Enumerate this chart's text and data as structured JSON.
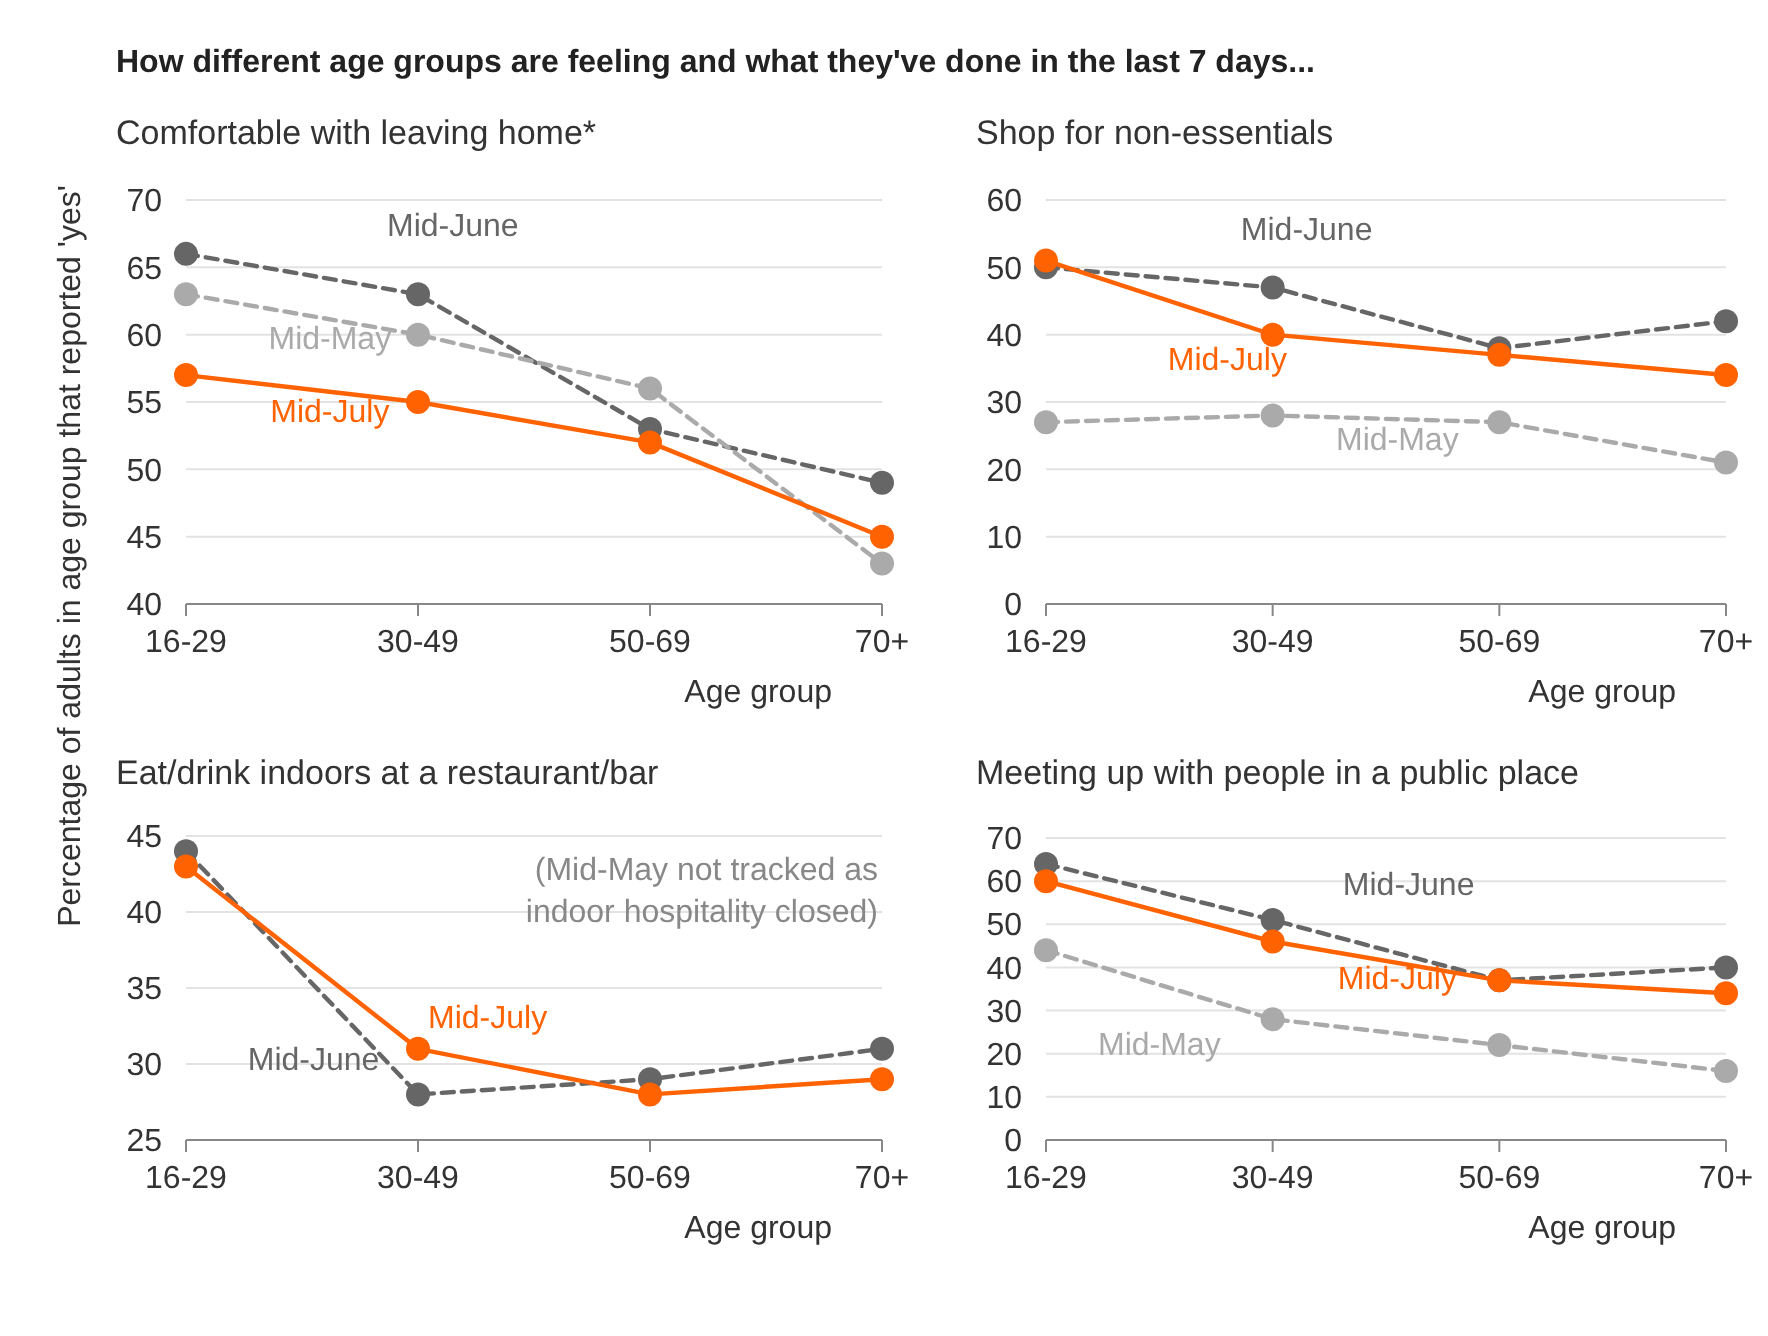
{
  "chart_data": [
    {
      "type": "line",
      "title": "Comfortable with leaving home*",
      "xlabel": "Age group",
      "ylabel": "Percentage of adults in age group that reported 'yes'",
      "annotations": [
        "How different age groups are feeling and what they've done in the last 7 days..."
      ],
      "categories": [
        "16-29",
        "30-49",
        "50-69",
        "70+"
      ],
      "ylim": [
        40,
        70
      ],
      "yticks": [
        40,
        45,
        50,
        55,
        60,
        65,
        70
      ],
      "grid": "y",
      "legend": false,
      "marker": "circle",
      "series": [
        {
          "name": "Mid-June",
          "color": "#666666",
          "line_style": "dashed",
          "values": [
            66,
            63,
            53,
            49
          ]
        },
        {
          "name": "Mid-May",
          "color": "#aaaaaa",
          "line_style": "dashed",
          "values": [
            63,
            60,
            56,
            43
          ]
        },
        {
          "name": "Mid-July",
          "color": "#ff6200",
          "line_style": "solid",
          "values": [
            57,
            55,
            52,
            45
          ]
        }
      ]
    },
    {
      "type": "line",
      "title": "Shop for non-essentials",
      "xlabel": "Age group",
      "categories": [
        "16-29",
        "30-49",
        "50-69",
        "70+"
      ],
      "ylim": [
        0,
        60
      ],
      "yticks": [
        0,
        10,
        20,
        30,
        40,
        50,
        60
      ],
      "grid": "y",
      "legend": false,
      "marker": "circle",
      "series": [
        {
          "name": "Mid-June",
          "color": "#666666",
          "line_style": "dashed",
          "values": [
            50,
            47,
            38,
            42
          ]
        },
        {
          "name": "Mid-May",
          "color": "#aaaaaa",
          "line_style": "dashed",
          "values": [
            27,
            28,
            27,
            21
          ]
        },
        {
          "name": "Mid-July",
          "color": "#ff6200",
          "line_style": "solid",
          "values": [
            51,
            40,
            37,
            34
          ]
        }
      ]
    },
    {
      "type": "line",
      "title": "Eat/drink indoors at a restaurant/bar",
      "xlabel": "Age group",
      "annotations": [
        "(Mid-May not tracked as indoor hospitality closed)"
      ],
      "categories": [
        "16-29",
        "30-49",
        "50-69",
        "70+"
      ],
      "ylim": [
        25,
        45
      ],
      "yticks": [
        25,
        30,
        35,
        40,
        45
      ],
      "grid": "y",
      "legend": false,
      "marker": "circle",
      "series": [
        {
          "name": "Mid-June",
          "color": "#666666",
          "line_style": "dashed",
          "values": [
            44,
            28,
            29,
            31
          ]
        },
        {
          "name": "Mid-July",
          "color": "#ff6200",
          "line_style": "solid",
          "values": [
            43,
            31,
            28,
            29
          ]
        }
      ]
    },
    {
      "type": "line",
      "title": "Meeting up with people in a public place",
      "xlabel": "Age group",
      "categories": [
        "16-29",
        "30-49",
        "50-69",
        "70+"
      ],
      "ylim": [
        0,
        70
      ],
      "yticks": [
        0,
        10,
        20,
        30,
        40,
        50,
        60,
        70
      ],
      "grid": "y",
      "legend": false,
      "marker": "circle",
      "series": [
        {
          "name": "Mid-June",
          "color": "#666666",
          "line_style": "dashed",
          "values": [
            64,
            51,
            37,
            40
          ]
        },
        {
          "name": "Mid-May",
          "color": "#aaaaaa",
          "line_style": "dashed",
          "values": [
            44,
            28,
            22,
            16
          ]
        },
        {
          "name": "Mid-July",
          "color": "#ff6200",
          "line_style": "solid",
          "values": [
            60,
            46,
            37,
            34
          ]
        }
      ]
    }
  ]
}
